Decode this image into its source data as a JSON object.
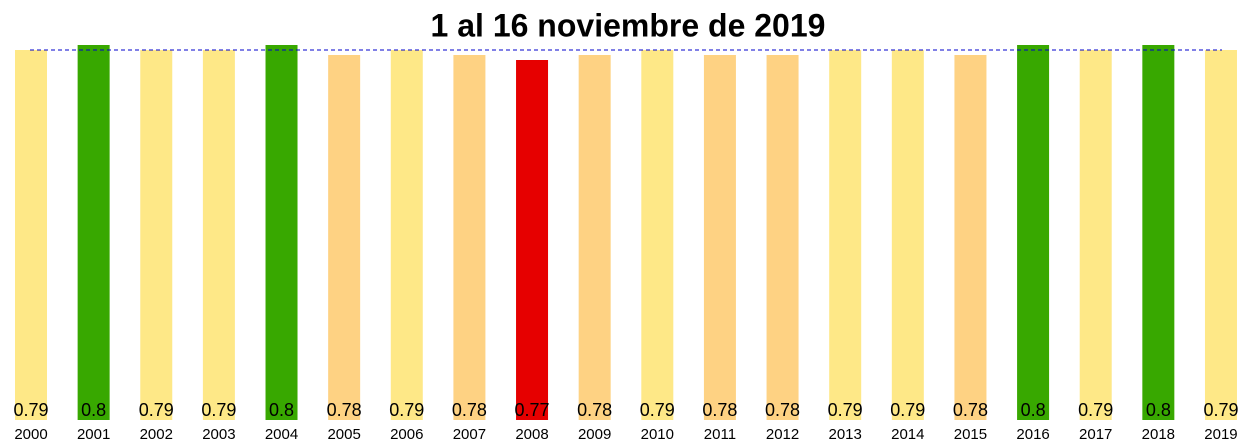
{
  "chart_data": {
    "type": "bar",
    "title": "1 al 16 noviembre de 2019",
    "categories": [
      "2000",
      "2001",
      "2002",
      "2003",
      "2004",
      "2005",
      "2006",
      "2007",
      "2008",
      "2009",
      "2010",
      "2011",
      "2012",
      "2013",
      "2014",
      "2015",
      "2016",
      "2017",
      "2018",
      "2019"
    ],
    "values": [
      0.79,
      0.8,
      0.79,
      0.79,
      0.8,
      0.78,
      0.79,
      0.78,
      0.77,
      0.78,
      0.79,
      0.78,
      0.78,
      0.79,
      0.79,
      0.78,
      0.8,
      0.79,
      0.8,
      0.79
    ],
    "colors": [
      "#fee887",
      "#38a800",
      "#fee887",
      "#fee887",
      "#38a800",
      "#fed283",
      "#fee887",
      "#fed283",
      "#e60000",
      "#fed283",
      "#fee887",
      "#fed283",
      "#fed283",
      "#fee887",
      "#fee887",
      "#fed283",
      "#38a800",
      "#fee887",
      "#38a800",
      "#fee887"
    ],
    "reference_line": 0.79,
    "reference_color": "#0000cc",
    "ylim": [
      0.05,
      0.8
    ]
  }
}
